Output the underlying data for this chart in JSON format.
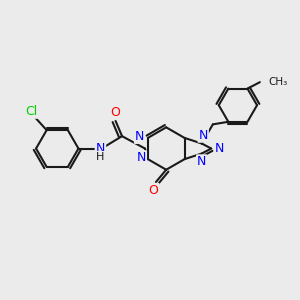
{
  "bg_color": "#ebebeb",
  "bond_color": "#1a1a1a",
  "bond_width": 1.5,
  "atom_colors": {
    "N": "#0000ff",
    "O": "#ff0000",
    "Cl": "#00cc00",
    "C": "#1a1a1a",
    "H": "#1a1a1a"
  },
  "font_size": 9,
  "dbl_sep": 0.09
}
